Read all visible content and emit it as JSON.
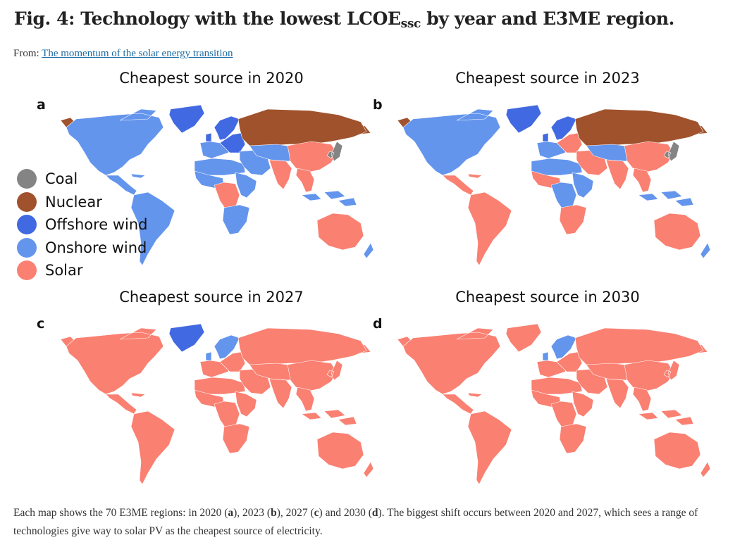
{
  "figure": {
    "title_main": "Fig. 4: Technology with the lowest LCOE",
    "title_sub": "ssc",
    "title_tail": " by year and E3ME region.",
    "from_label": "From: ",
    "from_link": "The momentum of the solar energy transition"
  },
  "colors": {
    "coal": "#848484",
    "nuclear": "#a0522d",
    "offshore_wind": "#4169e1",
    "onshore_wind": "#6495ed",
    "solar": "#fa8072"
  },
  "legend": [
    {
      "key": "coal",
      "label": "Coal"
    },
    {
      "key": "nuclear",
      "label": "Nuclear"
    },
    {
      "key": "offshore_wind",
      "label": "Offshore wind"
    },
    {
      "key": "onshore_wind",
      "label": "Onshore wind"
    },
    {
      "key": "solar",
      "label": "Solar"
    }
  ],
  "panels": [
    {
      "letter": "a",
      "title": "Cheapest source in 2020",
      "regions": {
        "north_america": "onshore_wind",
        "greenland": "offshore_wind",
        "alaska_east_russia": "nuclear",
        "central_america": "onshore_wind",
        "south_america": "onshore_wind",
        "western_europe": "onshore_wind",
        "northern_europe": "offshore_wind",
        "eastern_europe": "offshore_wind",
        "russia": "nuclear",
        "middle_east": "onshore_wind",
        "north_africa": "onshore_wind",
        "west_africa": "onshore_wind",
        "central_africa": "solar",
        "east_africa": "onshore_wind",
        "southern_africa": "onshore_wind",
        "central_asia": "onshore_wind",
        "south_asia": "solar",
        "china": "solar",
        "japan_korea": "coal",
        "southeast_asia": "solar",
        "indonesia": "onshore_wind",
        "australia": "solar",
        "new_zealand": "onshore_wind"
      }
    },
    {
      "letter": "b",
      "title": "Cheapest source in 2023",
      "regions": {
        "north_america": "onshore_wind",
        "greenland": "offshore_wind",
        "alaska_east_russia": "nuclear",
        "central_america": "solar",
        "south_america": "solar",
        "western_europe": "onshore_wind",
        "northern_europe": "offshore_wind",
        "eastern_europe": "solar",
        "russia": "nuclear",
        "middle_east": "solar",
        "north_africa": "onshore_wind",
        "west_africa": "solar",
        "central_africa": "onshore_wind",
        "east_africa": "onshore_wind",
        "southern_africa": "solar",
        "central_asia": "onshore_wind",
        "south_asia": "solar",
        "china": "solar",
        "japan_korea": "coal",
        "southeast_asia": "solar",
        "indonesia": "onshore_wind",
        "australia": "solar",
        "new_zealand": "onshore_wind"
      }
    },
    {
      "letter": "c",
      "title": "Cheapest source in 2027",
      "regions": {
        "north_america": "solar",
        "greenland": "offshore_wind",
        "alaska_east_russia": "solar",
        "central_america": "solar",
        "south_america": "solar",
        "western_europe": "solar",
        "northern_europe": "onshore_wind",
        "eastern_europe": "solar",
        "russia": "solar",
        "middle_east": "solar",
        "north_africa": "solar",
        "west_africa": "solar",
        "central_africa": "solar",
        "east_africa": "solar",
        "southern_africa": "solar",
        "central_asia": "solar",
        "south_asia": "solar",
        "china": "solar",
        "japan_korea": "solar",
        "southeast_asia": "solar",
        "indonesia": "solar",
        "australia": "solar",
        "new_zealand": "solar"
      }
    },
    {
      "letter": "d",
      "title": "Cheapest source in 2030",
      "regions": {
        "north_america": "solar",
        "greenland": "solar",
        "alaska_east_russia": "solar",
        "central_america": "solar",
        "south_america": "solar",
        "western_europe": "solar",
        "northern_europe": "onshore_wind",
        "eastern_europe": "solar",
        "russia": "solar",
        "middle_east": "solar",
        "north_africa": "solar",
        "west_africa": "solar",
        "central_africa": "solar",
        "east_africa": "solar",
        "southern_africa": "solar",
        "central_asia": "solar",
        "south_asia": "solar",
        "china": "solar",
        "japan_korea": "solar",
        "southeast_asia": "solar",
        "indonesia": "solar",
        "australia": "solar",
        "new_zealand": "solar"
      }
    }
  ],
  "caption": {
    "part1": "Each map shows the 70 E3ME regions: in 2020 (",
    "a": "a",
    "part2": "), 2023 (",
    "b": "b",
    "part3": "), 2027 (",
    "c": "c",
    "part4": ") and 2030 (",
    "d": "d",
    "part5": "). The biggest shift occurs between 2020 and 2027, which sees a range of technologies give way to solar PV as the cheapest source of electricity."
  }
}
